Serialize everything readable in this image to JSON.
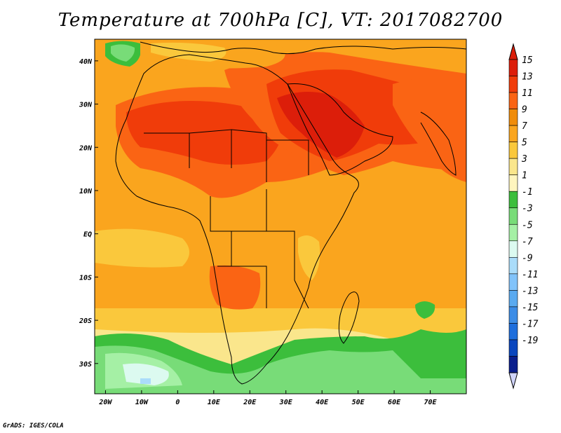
{
  "title": "Temperature at 700hPa [C], VT: 2017082700",
  "credit": "GrADS: IGES/COLA",
  "map": {
    "lon_range": [
      -23,
      80
    ],
    "lat_range": [
      -37,
      45
    ],
    "lon_ticks": [
      {
        "value": -20,
        "label": "20W"
      },
      {
        "value": -10,
        "label": "10W"
      },
      {
        "value": 0,
        "label": "0"
      },
      {
        "value": 10,
        "label": "10E"
      },
      {
        "value": 20,
        "label": "20E"
      },
      {
        "value": 30,
        "label": "30E"
      },
      {
        "value": 40,
        "label": "40E"
      },
      {
        "value": 50,
        "label": "50E"
      },
      {
        "value": 60,
        "label": "60E"
      },
      {
        "value": 70,
        "label": "70E"
      }
    ],
    "lat_ticks": [
      {
        "value": 40,
        "label": "40N"
      },
      {
        "value": 30,
        "label": "30N"
      },
      {
        "value": 20,
        "label": "20N"
      },
      {
        "value": 10,
        "label": "10N"
      },
      {
        "value": 0,
        "label": "EQ"
      },
      {
        "value": -10,
        "label": "10S"
      },
      {
        "value": -20,
        "label": "20S"
      },
      {
        "value": -30,
        "label": "30S"
      }
    ]
  },
  "colorbar": {
    "labels": [
      "15",
      "13",
      "11",
      "9",
      "7",
      "5",
      "3",
      "1",
      "-1",
      "-3",
      "-5",
      "-7",
      "-9",
      "-11",
      "-13",
      "-15",
      "-17",
      "-19"
    ],
    "colors": [
      "#dc1e0a",
      "#f03c0a",
      "#fa6414",
      "#f08c0a",
      "#faa51e",
      "#fac83c",
      "#fae68c",
      "#fff5be",
      "#3cbe3c",
      "#78dc78",
      "#a5f0a5",
      "#dcfaf0",
      "#aadcfa",
      "#82c3fa",
      "#5aaaf0",
      "#3c8ce6",
      "#1e6edc",
      "#0a46be",
      "#0a1e8c"
    ],
    "top_arrow_color": "#dc1e0a",
    "bottom_arrow_color": "#d0d4fa"
  }
}
